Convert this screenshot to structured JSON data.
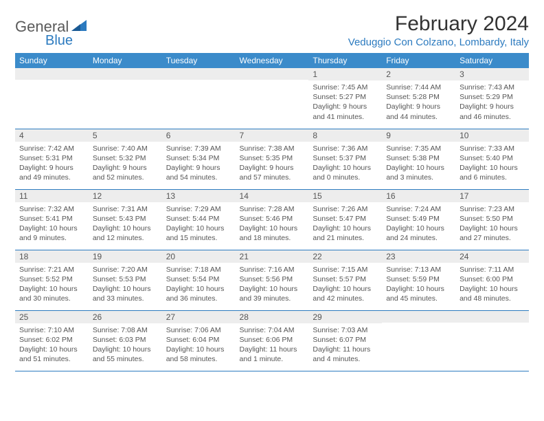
{
  "brand": {
    "part1": "General",
    "part2": "Blue"
  },
  "title": "February 2024",
  "location": "Veduggio Con Colzano, Lombardy, Italy",
  "colors": {
    "header_bg": "#3b8bca",
    "header_text": "#ffffff",
    "daynum_bg": "#ededed",
    "text": "#555555",
    "accent": "#2b7abf",
    "border": "#2b7abf"
  },
  "day_headers": [
    "Sunday",
    "Monday",
    "Tuesday",
    "Wednesday",
    "Thursday",
    "Friday",
    "Saturday"
  ],
  "weeks": [
    [
      {
        "n": "",
        "sr": "",
        "ss": "",
        "dl": ""
      },
      {
        "n": "",
        "sr": "",
        "ss": "",
        "dl": ""
      },
      {
        "n": "",
        "sr": "",
        "ss": "",
        "dl": ""
      },
      {
        "n": "",
        "sr": "",
        "ss": "",
        "dl": ""
      },
      {
        "n": "1",
        "sr": "Sunrise: 7:45 AM",
        "ss": "Sunset: 5:27 PM",
        "dl": "Daylight: 9 hours and 41 minutes."
      },
      {
        "n": "2",
        "sr": "Sunrise: 7:44 AM",
        "ss": "Sunset: 5:28 PM",
        "dl": "Daylight: 9 hours and 44 minutes."
      },
      {
        "n": "3",
        "sr": "Sunrise: 7:43 AM",
        "ss": "Sunset: 5:29 PM",
        "dl": "Daylight: 9 hours and 46 minutes."
      }
    ],
    [
      {
        "n": "4",
        "sr": "Sunrise: 7:42 AM",
        "ss": "Sunset: 5:31 PM",
        "dl": "Daylight: 9 hours and 49 minutes."
      },
      {
        "n": "5",
        "sr": "Sunrise: 7:40 AM",
        "ss": "Sunset: 5:32 PM",
        "dl": "Daylight: 9 hours and 52 minutes."
      },
      {
        "n": "6",
        "sr": "Sunrise: 7:39 AM",
        "ss": "Sunset: 5:34 PM",
        "dl": "Daylight: 9 hours and 54 minutes."
      },
      {
        "n": "7",
        "sr": "Sunrise: 7:38 AM",
        "ss": "Sunset: 5:35 PM",
        "dl": "Daylight: 9 hours and 57 minutes."
      },
      {
        "n": "8",
        "sr": "Sunrise: 7:36 AM",
        "ss": "Sunset: 5:37 PM",
        "dl": "Daylight: 10 hours and 0 minutes."
      },
      {
        "n": "9",
        "sr": "Sunrise: 7:35 AM",
        "ss": "Sunset: 5:38 PM",
        "dl": "Daylight: 10 hours and 3 minutes."
      },
      {
        "n": "10",
        "sr": "Sunrise: 7:33 AM",
        "ss": "Sunset: 5:40 PM",
        "dl": "Daylight: 10 hours and 6 minutes."
      }
    ],
    [
      {
        "n": "11",
        "sr": "Sunrise: 7:32 AM",
        "ss": "Sunset: 5:41 PM",
        "dl": "Daylight: 10 hours and 9 minutes."
      },
      {
        "n": "12",
        "sr": "Sunrise: 7:31 AM",
        "ss": "Sunset: 5:43 PM",
        "dl": "Daylight: 10 hours and 12 minutes."
      },
      {
        "n": "13",
        "sr": "Sunrise: 7:29 AM",
        "ss": "Sunset: 5:44 PM",
        "dl": "Daylight: 10 hours and 15 minutes."
      },
      {
        "n": "14",
        "sr": "Sunrise: 7:28 AM",
        "ss": "Sunset: 5:46 PM",
        "dl": "Daylight: 10 hours and 18 minutes."
      },
      {
        "n": "15",
        "sr": "Sunrise: 7:26 AM",
        "ss": "Sunset: 5:47 PM",
        "dl": "Daylight: 10 hours and 21 minutes."
      },
      {
        "n": "16",
        "sr": "Sunrise: 7:24 AM",
        "ss": "Sunset: 5:49 PM",
        "dl": "Daylight: 10 hours and 24 minutes."
      },
      {
        "n": "17",
        "sr": "Sunrise: 7:23 AM",
        "ss": "Sunset: 5:50 PM",
        "dl": "Daylight: 10 hours and 27 minutes."
      }
    ],
    [
      {
        "n": "18",
        "sr": "Sunrise: 7:21 AM",
        "ss": "Sunset: 5:52 PM",
        "dl": "Daylight: 10 hours and 30 minutes."
      },
      {
        "n": "19",
        "sr": "Sunrise: 7:20 AM",
        "ss": "Sunset: 5:53 PM",
        "dl": "Daylight: 10 hours and 33 minutes."
      },
      {
        "n": "20",
        "sr": "Sunrise: 7:18 AM",
        "ss": "Sunset: 5:54 PM",
        "dl": "Daylight: 10 hours and 36 minutes."
      },
      {
        "n": "21",
        "sr": "Sunrise: 7:16 AM",
        "ss": "Sunset: 5:56 PM",
        "dl": "Daylight: 10 hours and 39 minutes."
      },
      {
        "n": "22",
        "sr": "Sunrise: 7:15 AM",
        "ss": "Sunset: 5:57 PM",
        "dl": "Daylight: 10 hours and 42 minutes."
      },
      {
        "n": "23",
        "sr": "Sunrise: 7:13 AM",
        "ss": "Sunset: 5:59 PM",
        "dl": "Daylight: 10 hours and 45 minutes."
      },
      {
        "n": "24",
        "sr": "Sunrise: 7:11 AM",
        "ss": "Sunset: 6:00 PM",
        "dl": "Daylight: 10 hours and 48 minutes."
      }
    ],
    [
      {
        "n": "25",
        "sr": "Sunrise: 7:10 AM",
        "ss": "Sunset: 6:02 PM",
        "dl": "Daylight: 10 hours and 51 minutes."
      },
      {
        "n": "26",
        "sr": "Sunrise: 7:08 AM",
        "ss": "Sunset: 6:03 PM",
        "dl": "Daylight: 10 hours and 55 minutes."
      },
      {
        "n": "27",
        "sr": "Sunrise: 7:06 AM",
        "ss": "Sunset: 6:04 PM",
        "dl": "Daylight: 10 hours and 58 minutes."
      },
      {
        "n": "28",
        "sr": "Sunrise: 7:04 AM",
        "ss": "Sunset: 6:06 PM",
        "dl": "Daylight: 11 hours and 1 minute."
      },
      {
        "n": "29",
        "sr": "Sunrise: 7:03 AM",
        "ss": "Sunset: 6:07 PM",
        "dl": "Daylight: 11 hours and 4 minutes."
      },
      {
        "n": "",
        "sr": "",
        "ss": "",
        "dl": ""
      },
      {
        "n": "",
        "sr": "",
        "ss": "",
        "dl": ""
      }
    ]
  ]
}
